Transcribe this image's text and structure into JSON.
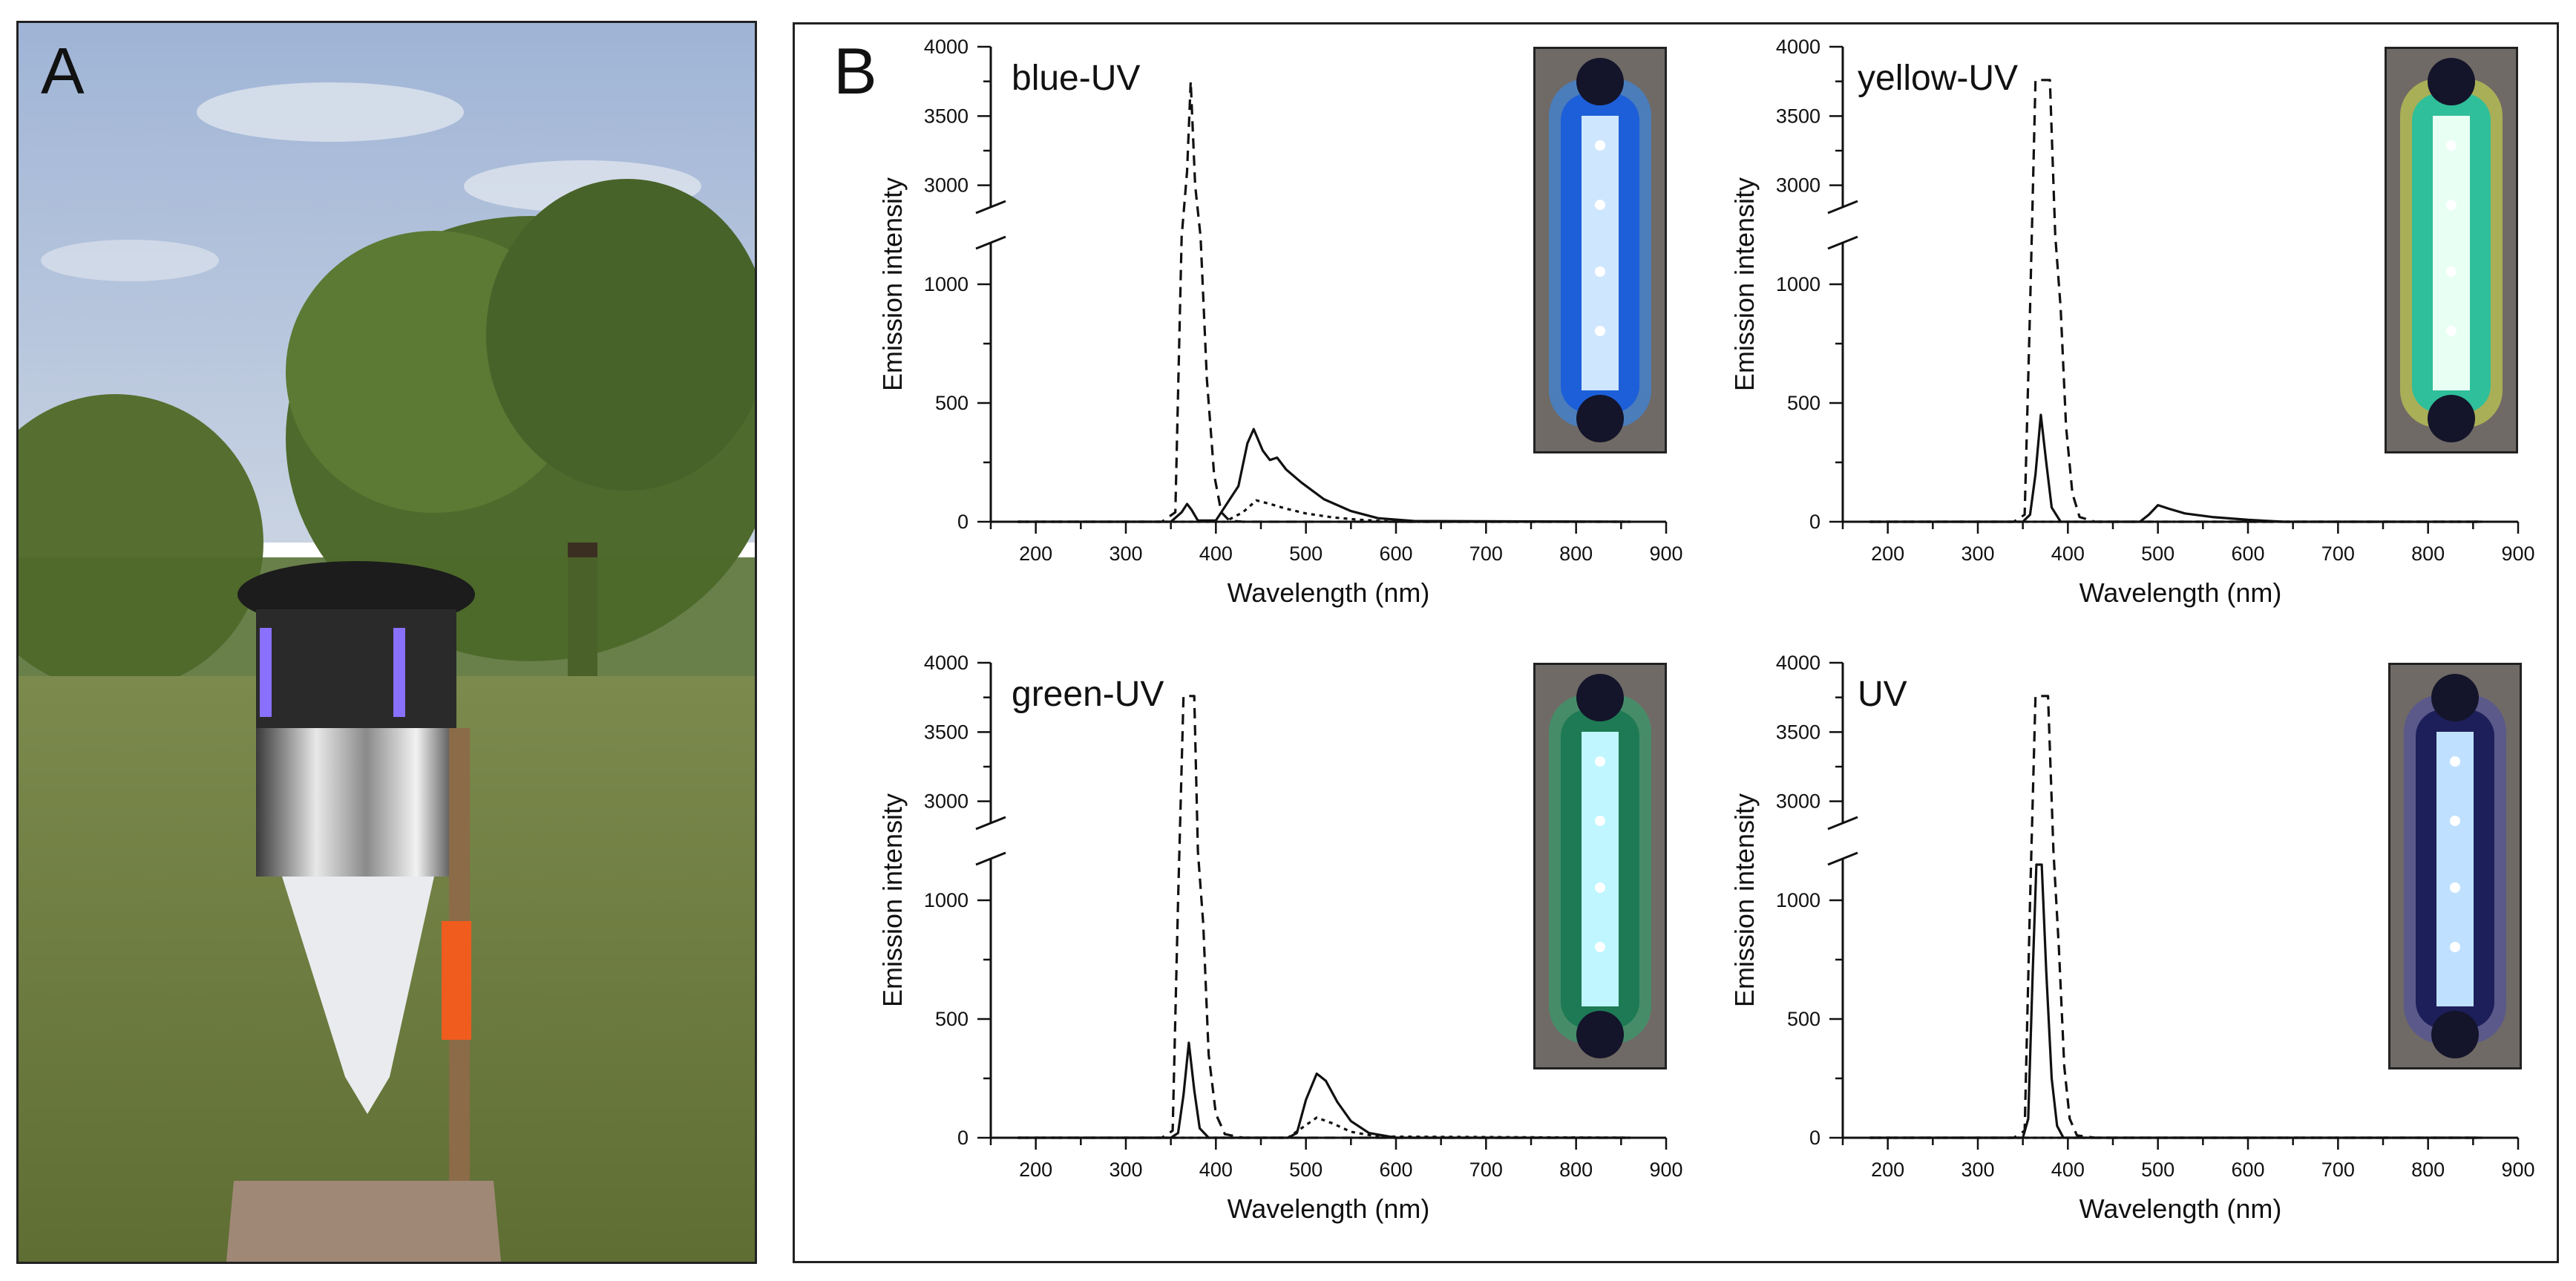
{
  "panel_a": {
    "letter": "A",
    "photo_icon": "light-trap-in-orchard-photo"
  },
  "panel_b": {
    "letter": "B",
    "line_color": "#111111"
  },
  "chart_data": [
    {
      "type": "line",
      "title": "blue-UV",
      "xlabel": "Wavelength (nm)",
      "ylabel": "Emission intensity",
      "xlim": [
        150,
        900
      ],
      "ylim": [
        0,
        4000
      ],
      "axis_break": [
        1200,
        2800
      ],
      "x_ticks": [
        200,
        300,
        400,
        500,
        600,
        700,
        800,
        900
      ],
      "y_ticks": [
        0,
        500,
        1000,
        3000,
        3500,
        4000
      ],
      "series": [
        {
          "style": "dashed",
          "x": [
            180,
            340,
            355,
            362,
            368,
            372,
            377,
            383,
            390,
            398,
            406,
            415,
            430,
            860
          ],
          "y": [
            0,
            0,
            40,
            1200,
            3100,
            3750,
            3000,
            1200,
            600,
            200,
            40,
            5,
            0,
            0
          ]
        },
        {
          "style": "solid",
          "x": [
            180,
            350,
            362,
            368,
            373,
            380,
            400,
            425,
            435,
            442,
            452,
            460,
            468,
            478,
            495,
            520,
            550,
            580,
            620,
            860
          ],
          "y": [
            0,
            0,
            40,
            75,
            50,
            5,
            5,
            150,
            330,
            390,
            300,
            260,
            270,
            220,
            165,
            95,
            45,
            15,
            3,
            0
          ]
        },
        {
          "style": "dotted",
          "x": [
            180,
            410,
            430,
            445,
            460,
            478,
            500,
            530,
            560,
            600,
            860
          ],
          "y": [
            0,
            0,
            40,
            90,
            75,
            55,
            35,
            18,
            8,
            0,
            0
          ]
        }
      ]
    },
    {
      "type": "line",
      "title": "yellow-UV",
      "xlabel": "Wavelength (nm)",
      "ylabel": "Emission intensity",
      "xlim": [
        150,
        900
      ],
      "ylim": [
        0,
        4000
      ],
      "axis_break": [
        1200,
        2800
      ],
      "x_ticks": [
        200,
        300,
        400,
        500,
        600,
        700,
        800,
        900
      ],
      "y_ticks": [
        0,
        500,
        1000,
        3000,
        3500,
        4000
      ],
      "series": [
        {
          "style": "dashed",
          "x": [
            180,
            340,
            352,
            358,
            364,
            380,
            386,
            392,
            398,
            405,
            413,
            430,
            860
          ],
          "y": [
            0,
            0,
            30,
            900,
            3760,
            3760,
            1300,
            900,
            400,
            120,
            20,
            0,
            0
          ]
        },
        {
          "style": "solid",
          "x": [
            180,
            350,
            358,
            364,
            370,
            376,
            382,
            392,
            480,
            490,
            500,
            512,
            530,
            560,
            600,
            640,
            860
          ],
          "y": [
            0,
            0,
            30,
            200,
            450,
            250,
            60,
            0,
            0,
            30,
            70,
            55,
            35,
            20,
            8,
            0,
            0
          ]
        },
        {
          "style": "dotted",
          "x": [
            180,
            860
          ],
          "y": [
            0,
            0
          ]
        }
      ]
    },
    {
      "type": "line",
      "title": "green-UV",
      "xlabel": "Wavelength (nm)",
      "ylabel": "Emission intensity",
      "xlim": [
        150,
        900
      ],
      "ylim": [
        0,
        4000
      ],
      "axis_break": [
        1200,
        2800
      ],
      "x_ticks": [
        200,
        300,
        400,
        500,
        600,
        700,
        800,
        900
      ],
      "y_ticks": [
        0,
        500,
        1000,
        3000,
        3500,
        4000
      ],
      "series": [
        {
          "style": "dashed",
          "x": [
            180,
            340,
            352,
            358,
            364,
            376,
            380,
            386,
            392,
            400,
            410,
            430,
            860
          ],
          "y": [
            0,
            0,
            30,
            1000,
            3760,
            3760,
            1300,
            900,
            350,
            100,
            15,
            0,
            0
          ]
        },
        {
          "style": "solid",
          "x": [
            180,
            350,
            358,
            364,
            370,
            376,
            382,
            392,
            480,
            490,
            500,
            512,
            522,
            535,
            550,
            570,
            600,
            860
          ],
          "y": [
            0,
            0,
            20,
            180,
            400,
            200,
            40,
            0,
            0,
            20,
            160,
            270,
            240,
            150,
            70,
            20,
            0,
            0
          ]
        },
        {
          "style": "dotted",
          "x": [
            180,
            480,
            495,
            512,
            530,
            550,
            580,
            860
          ],
          "y": [
            0,
            0,
            40,
            85,
            60,
            25,
            5,
            0
          ]
        }
      ]
    },
    {
      "type": "line",
      "title": "UV",
      "xlabel": "Wavelength (nm)",
      "ylabel": "Emission intensity",
      "xlim": [
        150,
        900
      ],
      "ylim": [
        0,
        4000
      ],
      "axis_break": [
        1200,
        2800
      ],
      "x_ticks": [
        200,
        300,
        400,
        500,
        600,
        700,
        800,
        900
      ],
      "y_ticks": [
        0,
        500,
        1000,
        3000,
        3500,
        4000
      ],
      "series": [
        {
          "style": "dashed",
          "x": [
            180,
            340,
            352,
            358,
            364,
            378,
            384,
            390,
            396,
            402,
            410,
            430,
            860
          ],
          "y": [
            0,
            0,
            30,
            1000,
            3760,
            3760,
            1300,
            800,
            300,
            80,
            10,
            0,
            0
          ]
        },
        {
          "style": "solid",
          "x": [
            180,
            350,
            356,
            361,
            365,
            371,
            376,
            382,
            388,
            395,
            860
          ],
          "y": [
            0,
            0,
            80,
            700,
            1150,
            1150,
            700,
            250,
            50,
            0,
            0
          ]
        },
        {
          "style": "dotted",
          "x": [
            180,
            860
          ],
          "y": [
            0,
            0
          ]
        }
      ]
    }
  ],
  "insets": [
    {
      "name": "blue-UV-lamp-photo",
      "glow": "#2e8cff",
      "body": "#1d5fd8",
      "strip": "#cfe6ff"
    },
    {
      "name": "yellow-UV-lamp-photo",
      "glow": "#d8e84a",
      "body": "#2fbf9a",
      "strip": "#e8fff4"
    },
    {
      "name": "green-UV-lamp-photo",
      "glow": "#27a86b",
      "body": "#1e7a55",
      "strip": "#bff6ff"
    },
    {
      "name": "UV-lamp-photo",
      "glow": "#4a4aa8",
      "body": "#1d1f5a",
      "strip": "#bfe1ff"
    }
  ]
}
